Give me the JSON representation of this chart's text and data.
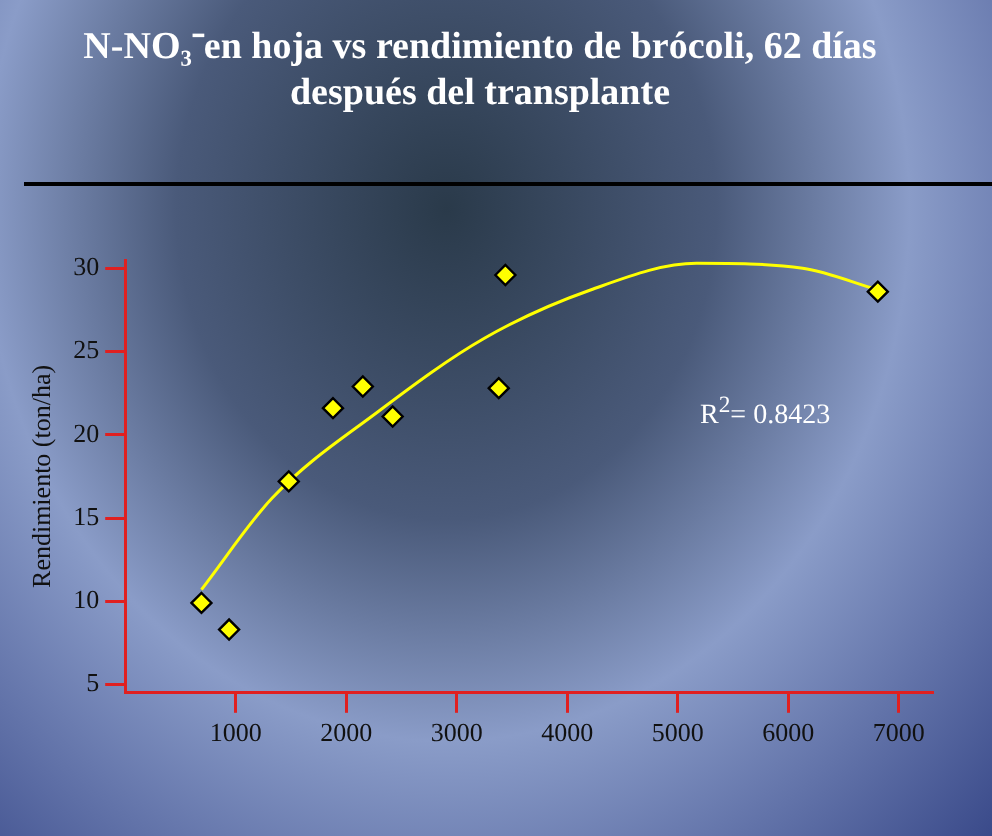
{
  "chart_data": {
    "type": "scatter",
    "title": "N-NO₃⁻en hoja vs rendimiento de brócoli, 62 días después del transplante",
    "ylabel": "Rendimiento (ton/ha)",
    "series": [
      {
        "type": "scatter",
        "color": "#ffff00",
        "x": [
          690,
          940,
          1480,
          1880,
          2150,
          2420,
          3380,
          3440,
          6810
        ],
        "values": [
          9.9,
          8.3,
          17.2,
          21.6,
          22.9,
          21.1,
          22.8,
          29.6,
          28.6
        ]
      },
      {
        "type": "line",
        "color": "#ffff00",
        "marker": "none",
        "x": [
          690,
          1330,
          2290,
          3250,
          4210,
          5170,
          6130,
          6810
        ],
        "values": [
          10.7,
          16.2,
          21.4,
          25.8,
          28.7,
          30.3,
          30.0,
          28.7
        ]
      }
    ],
    "xlim": [
      0,
      7300
    ],
    "xticks": [
      1000,
      2000,
      3000,
      4000,
      5000,
      6000,
      7000
    ],
    "ylim": [
      4.5,
      30.5
    ],
    "yticks": [
      5,
      10,
      15,
      20,
      25,
      30
    ],
    "annotations": [
      "R$^{2}$= 0.8423"
    ],
    "marker": "diamond",
    "grid": false,
    "legend": false
  }
}
